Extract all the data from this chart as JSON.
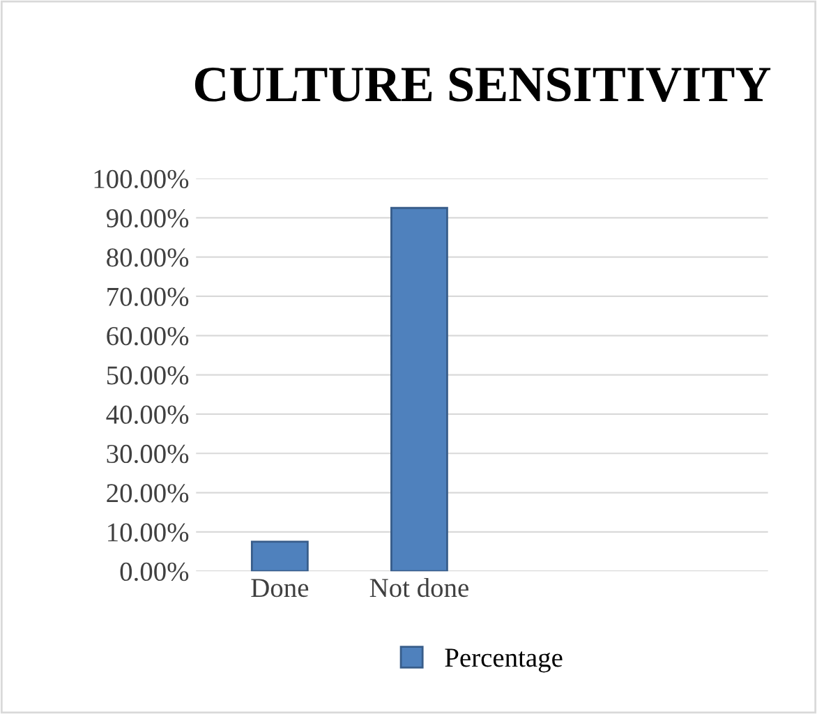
{
  "chart_data": {
    "type": "bar",
    "title": "CULTURE SENSITIVITY",
    "categories": [
      "Done",
      "Not done"
    ],
    "series": [
      {
        "name": "Percentage",
        "color": "#4f81bd",
        "values": [
          7.5,
          92.5
        ]
      }
    ],
    "ylim": [
      0,
      100
    ],
    "yticks": [
      {
        "value": 0,
        "label": "0.00%"
      },
      {
        "value": 10,
        "label": "10.00%"
      },
      {
        "value": 20,
        "label": "20.00%"
      },
      {
        "value": 30,
        "label": "30.00%"
      },
      {
        "value": 40,
        "label": "40.00%"
      },
      {
        "value": 50,
        "label": "50.00%"
      },
      {
        "value": 60,
        "label": "60.00%"
      },
      {
        "value": 70,
        "label": "70.00%"
      },
      {
        "value": 80,
        "label": "80.00%"
      },
      {
        "value": 90,
        "label": "90.00%"
      },
      {
        "value": 100,
        "label": "100.00%"
      }
    ],
    "grid": "y",
    "legend": "bottom"
  }
}
